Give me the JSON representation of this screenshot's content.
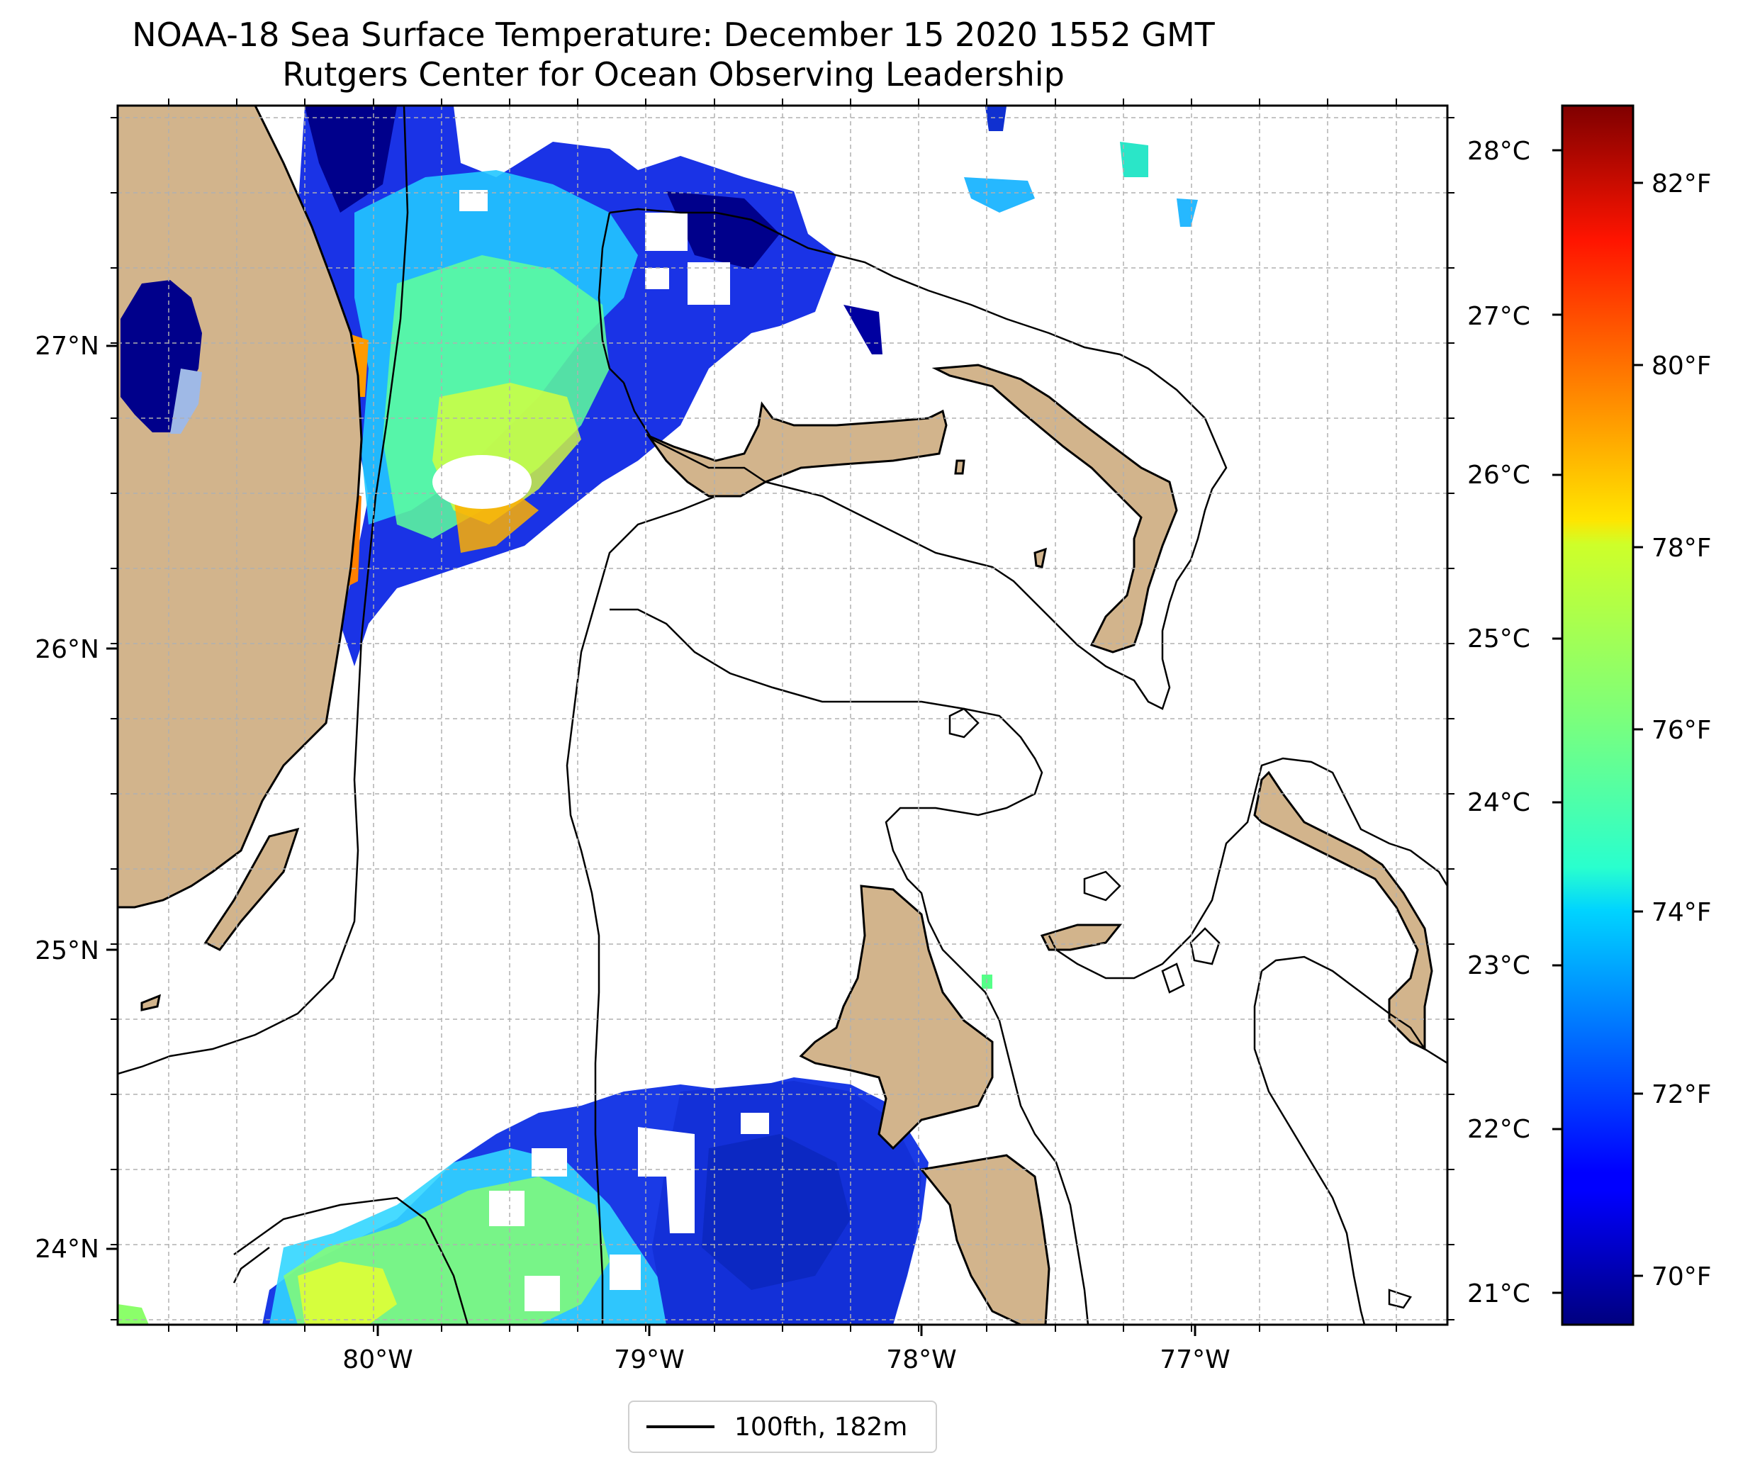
{
  "title": "NOAA-18 Sea Surface Temperature: December 15 2020 1552 GMT",
  "subtitle": "Rutgers Center for Ocean Observing Leadership",
  "axes": {
    "x_ticks": [
      "80°W",
      "79°W",
      "78°W",
      "77°W"
    ],
    "y_ticks": [
      "24°N",
      "25°N",
      "26°N",
      "27°N"
    ],
    "lon_range": [
      -81.0,
      -76.1
    ],
    "lat_range": [
      23.75,
      27.8
    ],
    "grid": true
  },
  "colorbar": {
    "celsius_ticks": [
      "21°C",
      "22°C",
      "23°C",
      "24°C",
      "25°C",
      "26°C",
      "27°C",
      "28°C"
    ],
    "fahrenheit_ticks": [
      "70°F",
      "72°F",
      "74°F",
      "76°F",
      "78°F",
      "80°F",
      "82°F"
    ],
    "colormap": "jet",
    "range_f": [
      69.3,
      83.2
    ]
  },
  "legend": {
    "label": "100fth, 182m"
  },
  "colors": {
    "land": "#d2b48c",
    "cold_water": "#00008b",
    "warm_water": "#ff8c00",
    "grid": "#b0b0b0"
  }
}
